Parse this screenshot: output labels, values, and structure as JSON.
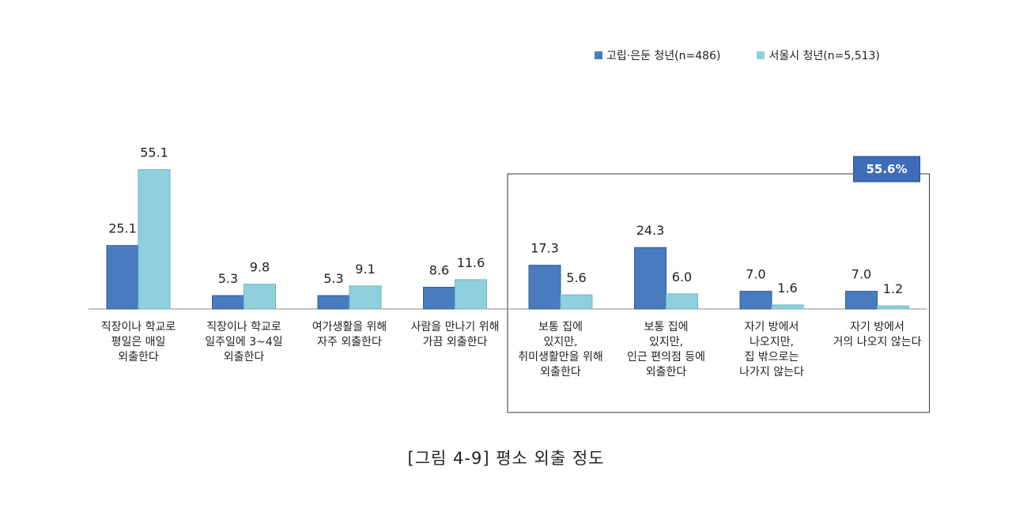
{
  "chart_data": {
    "type": "bar",
    "title": "[그림 4-9] 평소 외출 정도",
    "categories": [
      [
        "직장이나 학교로",
        "평일은 매일",
        "외출한다"
      ],
      [
        "직장이나 학교로",
        "일주일에 3~4일",
        "외출한다"
      ],
      [
        "여가생활을 위해",
        "자주 외출한다"
      ],
      [
        "사람을 만나기 위해",
        "가끔 외출한다"
      ],
      [
        "보통 집에",
        "있지만,",
        "취미생활만을 위해",
        "외출한다"
      ],
      [
        "보통 집에",
        "있지만,",
        "인근 편의점 등에",
        "외출한다"
      ],
      [
        "자기 방에서",
        "나오지만,",
        "집 밖으로는",
        "나가지 않는다"
      ],
      [
        "자기 방에서",
        "거의 나오지 않는다"
      ]
    ],
    "series": [
      {
        "name": "고립·은둔 청년(n=486)",
        "values": [
          25.1,
          5.3,
          5.3,
          8.6,
          17.3,
          24.3,
          7.0,
          7.0
        ],
        "color": "#4a7bbf"
      },
      {
        "name": "서울시 청년(n=5,513)",
        "values": [
          55.1,
          9.8,
          9.1,
          11.6,
          5.6,
          6.0,
          1.6,
          1.2
        ],
        "color": "#8fd0dc"
      }
    ],
    "value_labels": [
      [
        "25.1",
        "5.3",
        "5.3",
        "8.6",
        "17.3",
        "24.3",
        "7.0",
        "7.0"
      ],
      [
        "55.1",
        "9.8",
        "9.1",
        "11.6",
        "5.6",
        "6.0",
        "1.6",
        "1.2"
      ]
    ],
    "ylim": [
      0,
      60
    ],
    "legend_position": "top-right",
    "grid": false,
    "annotation": {
      "text": "55.6%",
      "group_categories": [
        4,
        5,
        6,
        7
      ],
      "fill": "#3d6db8"
    }
  }
}
